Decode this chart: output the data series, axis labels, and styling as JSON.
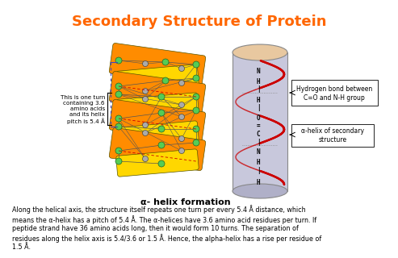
{
  "title": "Secondary Structure of Protein",
  "title_color": "#FF6600",
  "title_fontsize": 13,
  "subtitle": "α- helix formation",
  "subtitle_fontsize": 8,
  "body_text": "Along the helical axis, the structure itself repeats one turn per every 5.4 Å distance, which\nmeans the α-helix has a pitch of 5.4 Å. The α-helices have 3.6 amino acid residues per turn. If\npeptide strand have 36 amino acids long, then it would form 10 turns. The separation of\nresidues along the helix axis is 5.4/3.6 or 1.5 Å. Hence, the alpha-helix has a rise per residue of\n1.5 Å.",
  "body_fontsize": 5.8,
  "annotation_left": "This is one turn\ncontaining 3.6\namino acids\nand its helix\npitch is 5.4 Å",
  "annotation_right1": "Hydrogen bond between\nC=O and N-H group",
  "annotation_right2": "α-helix of secondary\nstructure",
  "bg_color": "#ffffff",
  "helix_color_orange": "#FF8C00",
  "helix_color_yellow": "#FFD700",
  "cylinder_body_color": "#C8C8DC",
  "cylinder_top_color": "#E8C8A0",
  "helix_line_color": "#CC0000",
  "node_color_green": "#55CC55",
  "node_color_gray": "#AAAAAA",
  "dashed_color": "#4444BB"
}
